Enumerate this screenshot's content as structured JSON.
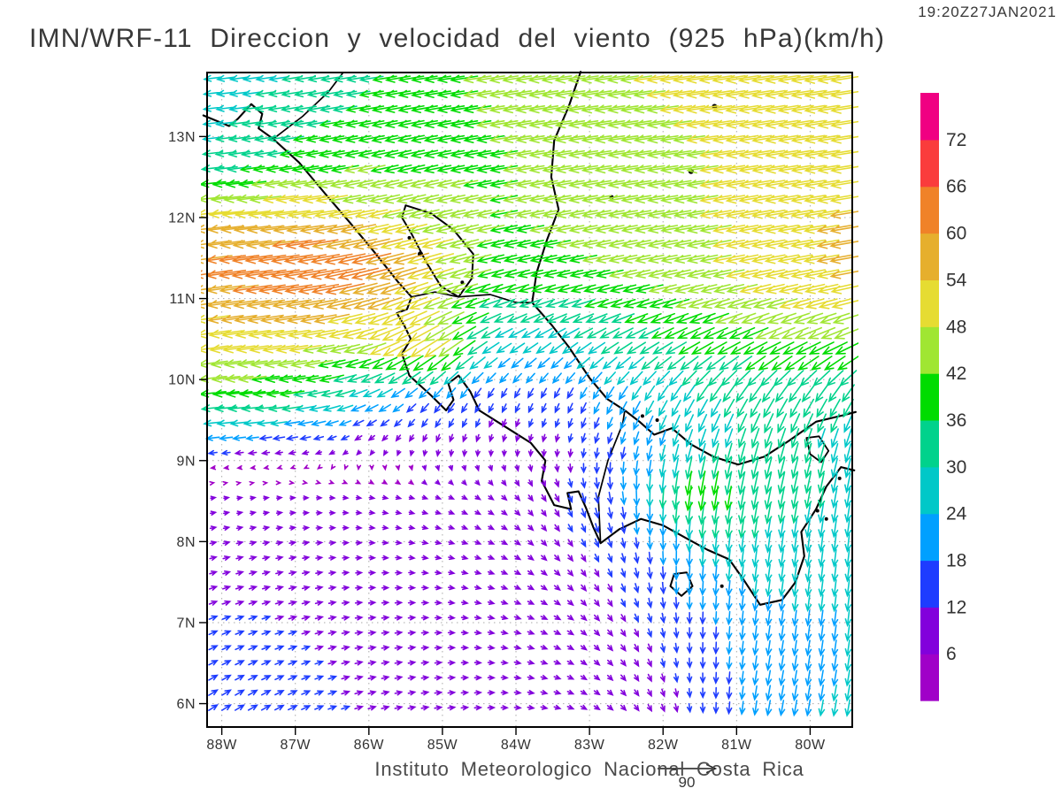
{
  "header": {
    "timestamp": "19:20Z27JAN2021",
    "title": "IMN/WRF-11 Direccion y velocidad del viento (925 hPa)(km/h)"
  },
  "footer": {
    "caption": "Instituto Meteorologico Nacional Costa Rica",
    "reference_vector_label": "90"
  },
  "colorbar": {
    "labels": [
      "6",
      "12",
      "18",
      "24",
      "30",
      "36",
      "42",
      "48",
      "54",
      "60",
      "66",
      "72"
    ],
    "colors": [
      "#A000C8",
      "#8200DC",
      "#1E3CFF",
      "#00A0FF",
      "#00C8C8",
      "#00D28C",
      "#00DC00",
      "#A0E632",
      "#E6DC32",
      "#E6AF2D",
      "#F08228",
      "#FA3C3C",
      "#F00082"
    ]
  },
  "axes": {
    "lon_labels": [
      "88W",
      "87W",
      "86W",
      "85W",
      "84W",
      "83W",
      "82W",
      "81W",
      "80W"
    ],
    "lon_values": [
      -88,
      -87,
      -86,
      -85,
      -84,
      -83,
      -82,
      -81,
      -80
    ],
    "lat_labels": [
      "13N",
      "12N",
      "11N",
      "10N",
      "9N",
      "8N",
      "7N",
      "6N"
    ],
    "lat_values": [
      13,
      12,
      11,
      10,
      9,
      8,
      7,
      6
    ]
  },
  "chart_data": {
    "type": "vector_field",
    "units": "km/h",
    "level": "925 hPa",
    "valid_time": "19:20Z27JAN2021",
    "reference_vector_kmh": 90,
    "speed_levels_kmh": [
      6,
      12,
      18,
      24,
      30,
      36,
      42,
      48,
      54,
      60,
      66,
      72
    ],
    "extent": {
      "lon_min": -88.2,
      "lon_max": -79.43,
      "lat_min": 5.71,
      "lat_max": 13.79
    },
    "grid_lats": [
      13.8,
      12.7,
      12.0,
      11.4,
      11.0,
      10.4,
      9.8,
      9.2,
      8.6,
      8.0,
      7.0,
      6.2,
      5.4
    ],
    "grid_lons": [
      -88.3,
      -87.5,
      -86.8,
      -86.1,
      -85.5,
      -85.0,
      -84.2,
      -83.4,
      -82.5,
      -81.6,
      -80.6,
      -79.4
    ],
    "u": [
      [
        -26,
        -28,
        -30,
        -34,
        -37,
        -40,
        -43,
        -45,
        -47,
        -49,
        -51,
        -52
      ],
      [
        -30,
        -34,
        -38,
        -40,
        -40,
        -40,
        -41,
        -43,
        -45,
        -47,
        -49,
        -52
      ],
      [
        -52,
        -54,
        -54,
        -50,
        -46,
        -44,
        -41,
        -42,
        -44,
        -46,
        -50,
        -54
      ],
      [
        -60,
        -63,
        -66,
        -63,
        -56,
        -48,
        -38,
        -40,
        -42,
        -45,
        -50,
        -55
      ],
      [
        -56,
        -58,
        -60,
        -55,
        -50,
        -42,
        -33,
        -34,
        -38,
        -42,
        -46,
        -50
      ],
      [
        -48,
        -49,
        -48,
        -43,
        -46,
        -40,
        -22,
        -22,
        -27,
        -32,
        -36,
        -38
      ],
      [
        -40,
        -38,
        -34,
        -25,
        -17,
        -12,
        -7,
        -7,
        -12,
        -16,
        -18,
        -17
      ],
      [
        -17,
        -15,
        -12,
        -7,
        -4,
        -3,
        -2,
        -2,
        -5,
        -8,
        -9,
        -8
      ],
      [
        7,
        7,
        7,
        7,
        7,
        7,
        7,
        5,
        2,
        -6,
        -7,
        -5
      ],
      [
        9,
        9,
        9,
        8,
        8,
        8,
        8,
        7,
        3,
        -2,
        -4,
        -3
      ],
      [
        12,
        12,
        11,
        10,
        10,
        9,
        9,
        9,
        6,
        0,
        -3,
        -3
      ],
      [
        13,
        13,
        12,
        11,
        10,
        10,
        9,
        9,
        7,
        1,
        -4,
        -4
      ],
      [
        14,
        14,
        13,
        12,
        11,
        11,
        10,
        9,
        8,
        2,
        -4,
        -5
      ]
    ],
    "v": [
      [
        -3,
        -4,
        -5,
        -5,
        -6,
        -6,
        -7,
        -7,
        -7,
        -7,
        -8,
        -8
      ],
      [
        -3,
        -5,
        -6,
        -8,
        -9,
        -8,
        -7,
        -7,
        -7,
        -7,
        -8,
        -8
      ],
      [
        -5,
        -6,
        -8,
        -10,
        -11,
        -10,
        -8,
        -8,
        -8,
        -8,
        -9,
        -9
      ],
      [
        -8,
        -9,
        -11,
        -15,
        -16,
        -14,
        -9,
        -8,
        -9,
        -9,
        -10,
        -10
      ],
      [
        -8,
        -9,
        -10,
        -15,
        -18,
        -14,
        -11,
        -10,
        -10,
        -11,
        -12,
        -12
      ],
      [
        -6,
        -7,
        -8,
        -12,
        -26,
        -28,
        -14,
        -16,
        -17,
        -18,
        -18,
        -18
      ],
      [
        -4,
        -4,
        -6,
        -10,
        -13,
        -15,
        -13,
        -14,
        -20,
        -25,
        -27,
        -26
      ],
      [
        -2,
        -2,
        -3,
        -6,
        -8,
        -10,
        -9,
        -10,
        -17,
        -26,
        -30,
        -28
      ],
      [
        1,
        1,
        0,
        -1,
        -2,
        -3,
        -6,
        -11,
        -20,
        -40,
        -34,
        -28
      ],
      [
        2,
        2,
        1,
        0,
        -1,
        -2,
        -4,
        -9,
        -14,
        -26,
        -28,
        -26
      ],
      [
        5,
        4,
        3,
        1,
        1,
        0,
        -2,
        -5,
        -10,
        -16,
        -22,
        -24
      ],
      [
        8,
        7,
        5,
        3,
        2,
        1,
        0,
        -3,
        -8,
        -13,
        -22,
        -24
      ],
      [
        10,
        9,
        7,
        4,
        3,
        2,
        0,
        -2,
        -7,
        -12,
        -24,
        -26
      ]
    ]
  },
  "geography": {
    "pacific_coast": [
      [
        -88.25,
        13.26
      ],
      [
        -87.9,
        13.13
      ],
      [
        -87.78,
        13.22
      ],
      [
        -87.6,
        13.4
      ],
      [
        -87.45,
        13.28
      ],
      [
        -87.5,
        13.1
      ],
      [
        -87.3,
        12.97
      ],
      [
        -86.95,
        12.68
      ],
      [
        -86.6,
        12.3
      ],
      [
        -86.25,
        11.93
      ],
      [
        -85.95,
        11.6
      ],
      [
        -85.6,
        11.2
      ],
      [
        -85.42,
        11.02
      ],
      [
        -85.48,
        10.87
      ],
      [
        -85.62,
        10.82
      ],
      [
        -85.52,
        10.67
      ],
      [
        -85.43,
        10.5
      ],
      [
        -85.55,
        10.32
      ],
      [
        -85.45,
        10.05
      ],
      [
        -85.15,
        9.8
      ],
      [
        -84.95,
        9.62
      ],
      [
        -84.85,
        9.75
      ],
      [
        -84.92,
        9.95
      ],
      [
        -84.78,
        10.05
      ],
      [
        -84.62,
        9.85
      ],
      [
        -84.5,
        9.62
      ],
      [
        -84.15,
        9.42
      ],
      [
        -83.8,
        9.22
      ],
      [
        -83.6,
        9.0
      ],
      [
        -83.65,
        8.75
      ],
      [
        -83.48,
        8.45
      ],
      [
        -83.25,
        8.4
      ],
      [
        -83.3,
        8.6
      ],
      [
        -83.15,
        8.62
      ],
      [
        -83.05,
        8.42
      ],
      [
        -82.95,
        8.18
      ],
      [
        -82.85,
        7.98
      ],
      [
        -82.6,
        8.15
      ],
      [
        -82.3,
        8.28
      ],
      [
        -82.0,
        8.2
      ],
      [
        -81.7,
        8.05
      ],
      [
        -81.4,
        7.9
      ],
      [
        -81.1,
        7.78
      ],
      [
        -80.92,
        7.55
      ],
      [
        -80.68,
        7.22
      ],
      [
        -80.38,
        7.28
      ],
      [
        -80.2,
        7.5
      ],
      [
        -80.08,
        7.82
      ],
      [
        -80.12,
        8.12
      ],
      [
        -79.92,
        8.4
      ],
      [
        -79.78,
        8.68
      ],
      [
        -79.58,
        8.92
      ],
      [
        -79.4,
        8.88
      ]
    ],
    "caribbean_coast": [
      [
        -83.12,
        13.8
      ],
      [
        -83.28,
        13.38
      ],
      [
        -83.48,
        12.95
      ],
      [
        -83.52,
        12.5
      ],
      [
        -83.42,
        12.1
      ],
      [
        -83.58,
        11.72
      ],
      [
        -83.72,
        11.32
      ],
      [
        -83.78,
        10.95
      ],
      [
        -83.52,
        10.68
      ],
      [
        -83.28,
        10.4
      ],
      [
        -83.0,
        10.02
      ],
      [
        -82.76,
        9.76
      ],
      [
        -82.52,
        9.62
      ],
      [
        -82.32,
        9.48
      ],
      [
        -82.12,
        9.32
      ],
      [
        -81.88,
        9.4
      ],
      [
        -81.62,
        9.2
      ],
      [
        -81.32,
        9.05
      ],
      [
        -80.98,
        8.95
      ],
      [
        -80.62,
        9.05
      ],
      [
        -80.28,
        9.25
      ],
      [
        -79.92,
        9.48
      ],
      [
        -79.55,
        9.56
      ],
      [
        -79.38,
        9.6
      ]
    ],
    "lake_nicaragua": [
      [
        -85.5,
        12.15
      ],
      [
        -85.15,
        12.05
      ],
      [
        -84.85,
        11.85
      ],
      [
        -84.58,
        11.55
      ],
      [
        -84.6,
        11.25
      ],
      [
        -84.78,
        11.02
      ],
      [
        -85.02,
        11.15
      ],
      [
        -85.22,
        11.45
      ],
      [
        -85.42,
        11.8
      ],
      [
        -85.55,
        12.0
      ],
      [
        -85.5,
        12.15
      ]
    ],
    "coiba_island": [
      [
        -81.85,
        7.6
      ],
      [
        -81.68,
        7.62
      ],
      [
        -81.6,
        7.45
      ],
      [
        -81.75,
        7.33
      ],
      [
        -81.9,
        7.45
      ],
      [
        -81.85,
        7.6
      ]
    ],
    "canal_lakes": [
      [
        -80.05,
        9.28
      ],
      [
        -79.88,
        9.3
      ],
      [
        -79.75,
        9.12
      ],
      [
        -79.85,
        8.98
      ],
      [
        -80.0,
        9.08
      ],
      [
        -80.05,
        9.28
      ]
    ],
    "border_honduras_nicaragua": [
      [
        -87.3,
        12.97
      ],
      [
        -86.9,
        13.25
      ],
      [
        -86.55,
        13.55
      ],
      [
        -86.35,
        13.79
      ]
    ],
    "border_cr_nicaragua": [
      [
        -85.42,
        11.02
      ],
      [
        -85.1,
        11.08
      ],
      [
        -84.78,
        11.02
      ],
      [
        -84.35,
        11.05
      ],
      [
        -84.0,
        10.95
      ],
      [
        -83.78,
        10.95
      ]
    ],
    "border_cr_panama": [
      [
        -82.85,
        7.98
      ],
      [
        -82.88,
        8.55
      ],
      [
        -82.75,
        9.0
      ],
      [
        -82.55,
        9.45
      ],
      [
        -82.52,
        9.62
      ]
    ],
    "island_dots": [
      [
        -81.3,
        13.37,
        3
      ],
      [
        -81.62,
        12.57,
        3
      ],
      [
        -82.7,
        12.25,
        2.5
      ],
      [
        -85.3,
        11.55,
        3
      ],
      [
        -85.45,
        11.75,
        2
      ],
      [
        -84.73,
        11.2,
        2
      ],
      [
        -82.28,
        9.55,
        2
      ],
      [
        -82.08,
        9.5,
        2
      ],
      [
        -79.9,
        8.38,
        2
      ],
      [
        -79.78,
        8.28,
        2
      ],
      [
        -79.6,
        8.78,
        2
      ],
      [
        -81.2,
        7.45,
        2
      ]
    ]
  }
}
